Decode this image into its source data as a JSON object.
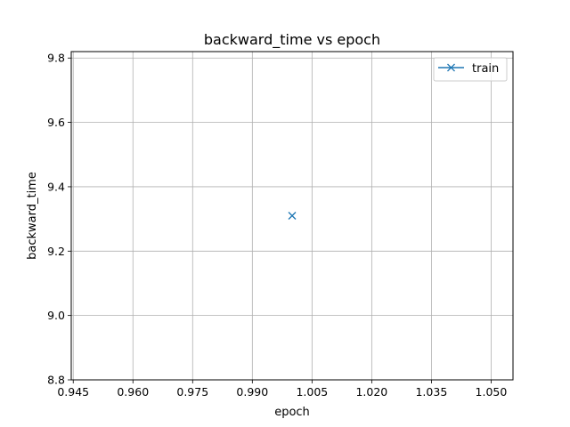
{
  "chart_data": {
    "type": "line",
    "title": "backward_time vs epoch",
    "xlabel": "epoch",
    "ylabel": "backward_time",
    "xlim": [
      0.9445,
      1.0555
    ],
    "ylim": [
      8.8,
      9.82
    ],
    "xticks": [
      0.945,
      0.96,
      0.975,
      0.99,
      1.005,
      1.02,
      1.035,
      1.05
    ],
    "xtick_labels": [
      "0.945",
      "0.960",
      "0.975",
      "0.990",
      "1.005",
      "1.020",
      "1.035",
      "1.050"
    ],
    "yticks": [
      8.8,
      9.0,
      9.2,
      9.4,
      9.6,
      9.8
    ],
    "ytick_labels": [
      "8.8",
      "9.0",
      "9.2",
      "9.4",
      "9.6",
      "9.8"
    ],
    "grid": true,
    "legend_position": "top-right",
    "series": [
      {
        "name": "train",
        "color": "#1f77b4",
        "marker": "x",
        "x": [
          1.0
        ],
        "y": [
          9.31
        ]
      }
    ]
  }
}
